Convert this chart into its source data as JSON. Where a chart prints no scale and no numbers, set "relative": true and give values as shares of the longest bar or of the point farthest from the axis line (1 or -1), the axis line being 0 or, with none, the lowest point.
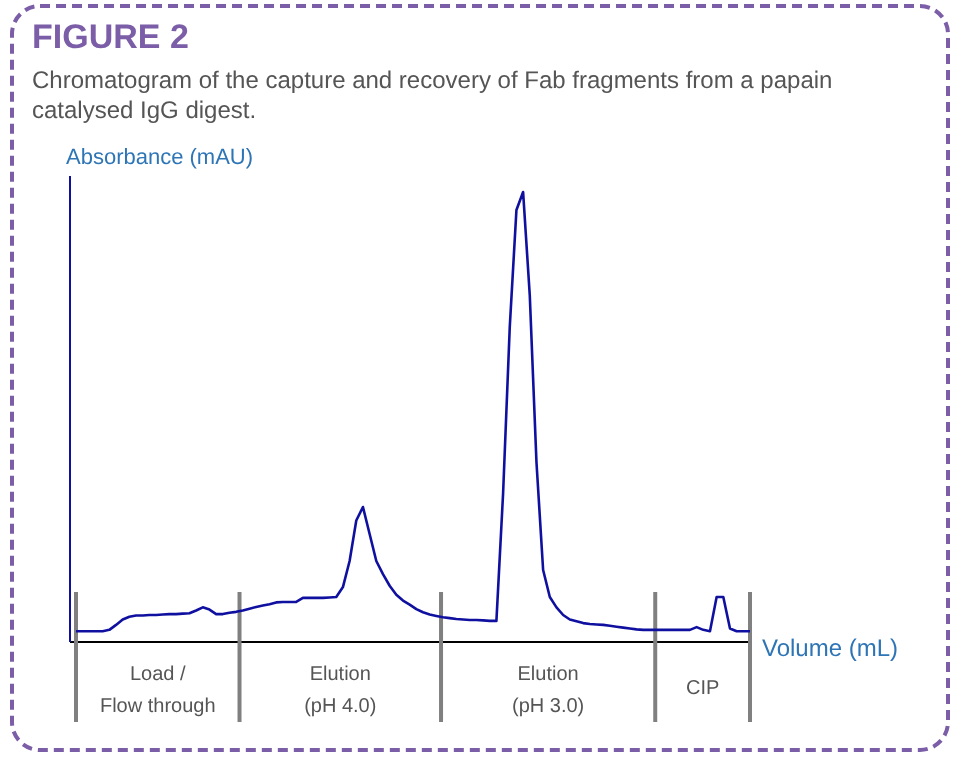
{
  "chart_data": {
    "type": "line",
    "title": "FIGURE 2",
    "subtitle": "Chromatogram of the capture and recovery of Fab fragments from a papain catalysed IgG digest.",
    "xlabel": "Volume (mL)",
    "ylabel": "Absorbance (mAU)",
    "relative": true,
    "annotations": [
      "Load /\nFlow through",
      "Elution\n(pH 4.0)",
      "Elution\n(pH 3.0)",
      "CIP"
    ],
    "categories": [
      null,
      null,
      null,
      null,
      null,
      null,
      null,
      null,
      null,
      null,
      null,
      null,
      null,
      null,
      null,
      null,
      null,
      null,
      null,
      null,
      null,
      null,
      null,
      null,
      null,
      null,
      null,
      null,
      null,
      null,
      null,
      null,
      null,
      null,
      null,
      null,
      null,
      null,
      null,
      null,
      null,
      null,
      null,
      null,
      null,
      null,
      null,
      null,
      null,
      null,
      null,
      null,
      null,
      null,
      null,
      null,
      null,
      null,
      null,
      null,
      null,
      null,
      null,
      null,
      null,
      null,
      null,
      null,
      null,
      null,
      null,
      null,
      null,
      null,
      null,
      null,
      null,
      null,
      null,
      null,
      null,
      null,
      null,
      null,
      null,
      null,
      null,
      null,
      null,
      null,
      null,
      null,
      null,
      null,
      null,
      null,
      null,
      null,
      null,
      null,
      null,
      null
    ],
    "series": [
      {
        "color": "#1010a0",
        "values": [
          0.024,
          0.024,
          0.024,
          0.024,
          0.024,
          0.027,
          0.038,
          0.05,
          0.056,
          0.059,
          0.059,
          0.06,
          0.06,
          0.061,
          0.062,
          0.062,
          0.063,
          0.064,
          0.07,
          0.077,
          0.072,
          0.062,
          0.062,
          0.065,
          0.067,
          0.07,
          0.074,
          0.078,
          0.081,
          0.084,
          0.088,
          0.089,
          0.089,
          0.089,
          0.098,
          0.098,
          0.098,
          0.098,
          0.099,
          0.1,
          0.122,
          0.18,
          0.27,
          0.3,
          0.24,
          0.18,
          0.151,
          0.125,
          0.105,
          0.092,
          0.083,
          0.073,
          0.066,
          0.061,
          0.058,
          0.055,
          0.053,
          0.051,
          0.05,
          0.049,
          0.049,
          0.048,
          0.047,
          0.047,
          0.33,
          0.7,
          0.96,
          1,
          0.77,
          0.4,
          0.16,
          0.1,
          0.077,
          0.06,
          0.05,
          0.046,
          0.042,
          0.04,
          0.039,
          0.038,
          0.036,
          0.034,
          0.032,
          0.03,
          0.028,
          0.027,
          0.027,
          0.027,
          0.027,
          0.027,
          0.027,
          0.027,
          0.027,
          0.033,
          0.027,
          0.024,
          0.1,
          0.1,
          0.03,
          0.024,
          0.024,
          0.024
        ]
      }
    ]
  }
}
